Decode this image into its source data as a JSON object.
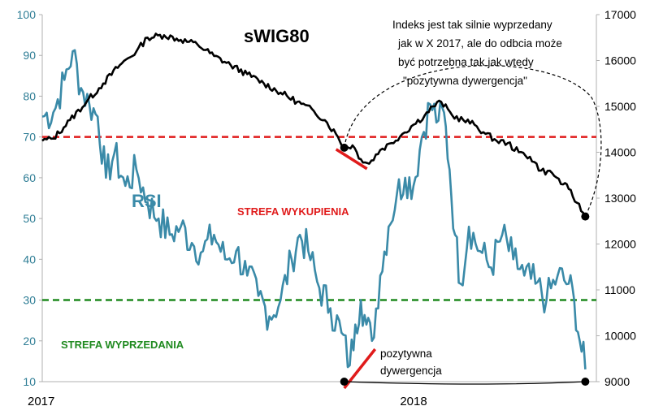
{
  "chart_data": {
    "type": "line",
    "title": "sWIG80",
    "x_ticks": [
      "2017",
      "2018"
    ],
    "left_axis": {
      "ticks": [
        10,
        20,
        30,
        40,
        50,
        60,
        70,
        80,
        90,
        100
      ],
      "range": [
        10,
        100
      ],
      "color": "#2e7d95"
    },
    "right_axis": {
      "ticks": [
        9000,
        10000,
        11000,
        12000,
        13000,
        14000,
        15000,
        16000,
        17000
      ],
      "range": [
        9000,
        17000
      ]
    },
    "series": [
      {
        "name": "sWIG80",
        "axis": "right",
        "color": "#000000",
        "anchors": [
          [
            0.0,
            14250
          ],
          [
            0.02,
            14300
          ],
          [
            0.05,
            14700
          ],
          [
            0.08,
            15100
          ],
          [
            0.11,
            15500
          ],
          [
            0.14,
            15900
          ],
          [
            0.17,
            16200
          ],
          [
            0.19,
            16500
          ],
          [
            0.22,
            16550
          ],
          [
            0.25,
            16450
          ],
          [
            0.28,
            16350
          ],
          [
            0.31,
            16100
          ],
          [
            0.34,
            15900
          ],
          [
            0.37,
            15700
          ],
          [
            0.4,
            15500
          ],
          [
            0.43,
            15300
          ],
          [
            0.46,
            15100
          ],
          [
            0.49,
            14900
          ],
          [
            0.51,
            14700
          ],
          [
            0.53,
            14400
          ],
          [
            0.545,
            14100
          ],
          [
            0.56,
            14150
          ],
          [
            0.575,
            13850
          ],
          [
            0.59,
            13750
          ],
          [
            0.61,
            14050
          ],
          [
            0.63,
            14200
          ],
          [
            0.65,
            14400
          ],
          [
            0.67,
            14600
          ],
          [
            0.69,
            14800
          ],
          [
            0.705,
            15000
          ],
          [
            0.72,
            15100
          ],
          [
            0.74,
            14800
          ],
          [
            0.76,
            14700
          ],
          [
            0.78,
            14600
          ],
          [
            0.8,
            14400
          ],
          [
            0.82,
            14250
          ],
          [
            0.84,
            14200
          ],
          [
            0.86,
            14000
          ],
          [
            0.88,
            13900
          ],
          [
            0.9,
            13600
          ],
          [
            0.92,
            13550
          ],
          [
            0.94,
            13300
          ],
          [
            0.95,
            13200
          ],
          [
            0.965,
            12900
          ],
          [
            0.98,
            12600
          ]
        ]
      },
      {
        "name": "RSI",
        "axis": "left",
        "color": "#3a8aa8",
        "anchors": [
          [
            0.0,
            75
          ],
          [
            0.02,
            76
          ],
          [
            0.04,
            84
          ],
          [
            0.055,
            91
          ],
          [
            0.07,
            82
          ],
          [
            0.085,
            78
          ],
          [
            0.1,
            75
          ],
          [
            0.115,
            60
          ],
          [
            0.13,
            66
          ],
          [
            0.15,
            58
          ],
          [
            0.17,
            62
          ],
          [
            0.19,
            54
          ],
          [
            0.21,
            50
          ],
          [
            0.23,
            46
          ],
          [
            0.25,
            48
          ],
          [
            0.27,
            44
          ],
          [
            0.29,
            42
          ],
          [
            0.31,
            46
          ],
          [
            0.33,
            40
          ],
          [
            0.35,
            42
          ],
          [
            0.37,
            36
          ],
          [
            0.39,
            31
          ],
          [
            0.41,
            26
          ],
          [
            0.43,
            30
          ],
          [
            0.45,
            40
          ],
          [
            0.465,
            46
          ],
          [
            0.48,
            42
          ],
          [
            0.5,
            33
          ],
          [
            0.52,
            28
          ],
          [
            0.54,
            22
          ],
          [
            0.555,
            14
          ],
          [
            0.565,
            24
          ],
          [
            0.575,
            30
          ],
          [
            0.585,
            24
          ],
          [
            0.595,
            20
          ],
          [
            0.61,
            36
          ],
          [
            0.625,
            48
          ],
          [
            0.64,
            56
          ],
          [
            0.655,
            60
          ],
          [
            0.67,
            58
          ],
          [
            0.685,
            70
          ],
          [
            0.7,
            78
          ],
          [
            0.715,
            74
          ],
          [
            0.725,
            76
          ],
          [
            0.735,
            62
          ],
          [
            0.745,
            46
          ],
          [
            0.755,
            34
          ],
          [
            0.77,
            48
          ],
          [
            0.79,
            42
          ],
          [
            0.81,
            38
          ],
          [
            0.83,
            46
          ],
          [
            0.85,
            40
          ],
          [
            0.87,
            36
          ],
          [
            0.89,
            34
          ],
          [
            0.91,
            30
          ],
          [
            0.93,
            36
          ],
          [
            0.95,
            34
          ],
          [
            0.96,
            30
          ],
          [
            0.97,
            20
          ],
          [
            0.98,
            13
          ]
        ]
      }
    ],
    "reference_lines": [
      {
        "label": "STREFA WYKUPIENIA",
        "axis": "left",
        "value": 70,
        "color": "#e01b1b",
        "style": "dashed"
      },
      {
        "label": "STREFA WYPRZEDANIA",
        "axis": "left",
        "value": 30,
        "color": "#1f8a1f",
        "style": "dashed"
      }
    ],
    "labels": {
      "rsi": "RSI",
      "annotation_lines": [
        "Indeks jest tak silnie wyprzedany",
        "jak w X 2017, ale do odbcia może",
        "być potrzebna tak jak wtedy",
        "\"pozytywna dywergencja\""
      ],
      "divergence_lines": [
        "pozytywna",
        "dywergencja"
      ]
    }
  }
}
